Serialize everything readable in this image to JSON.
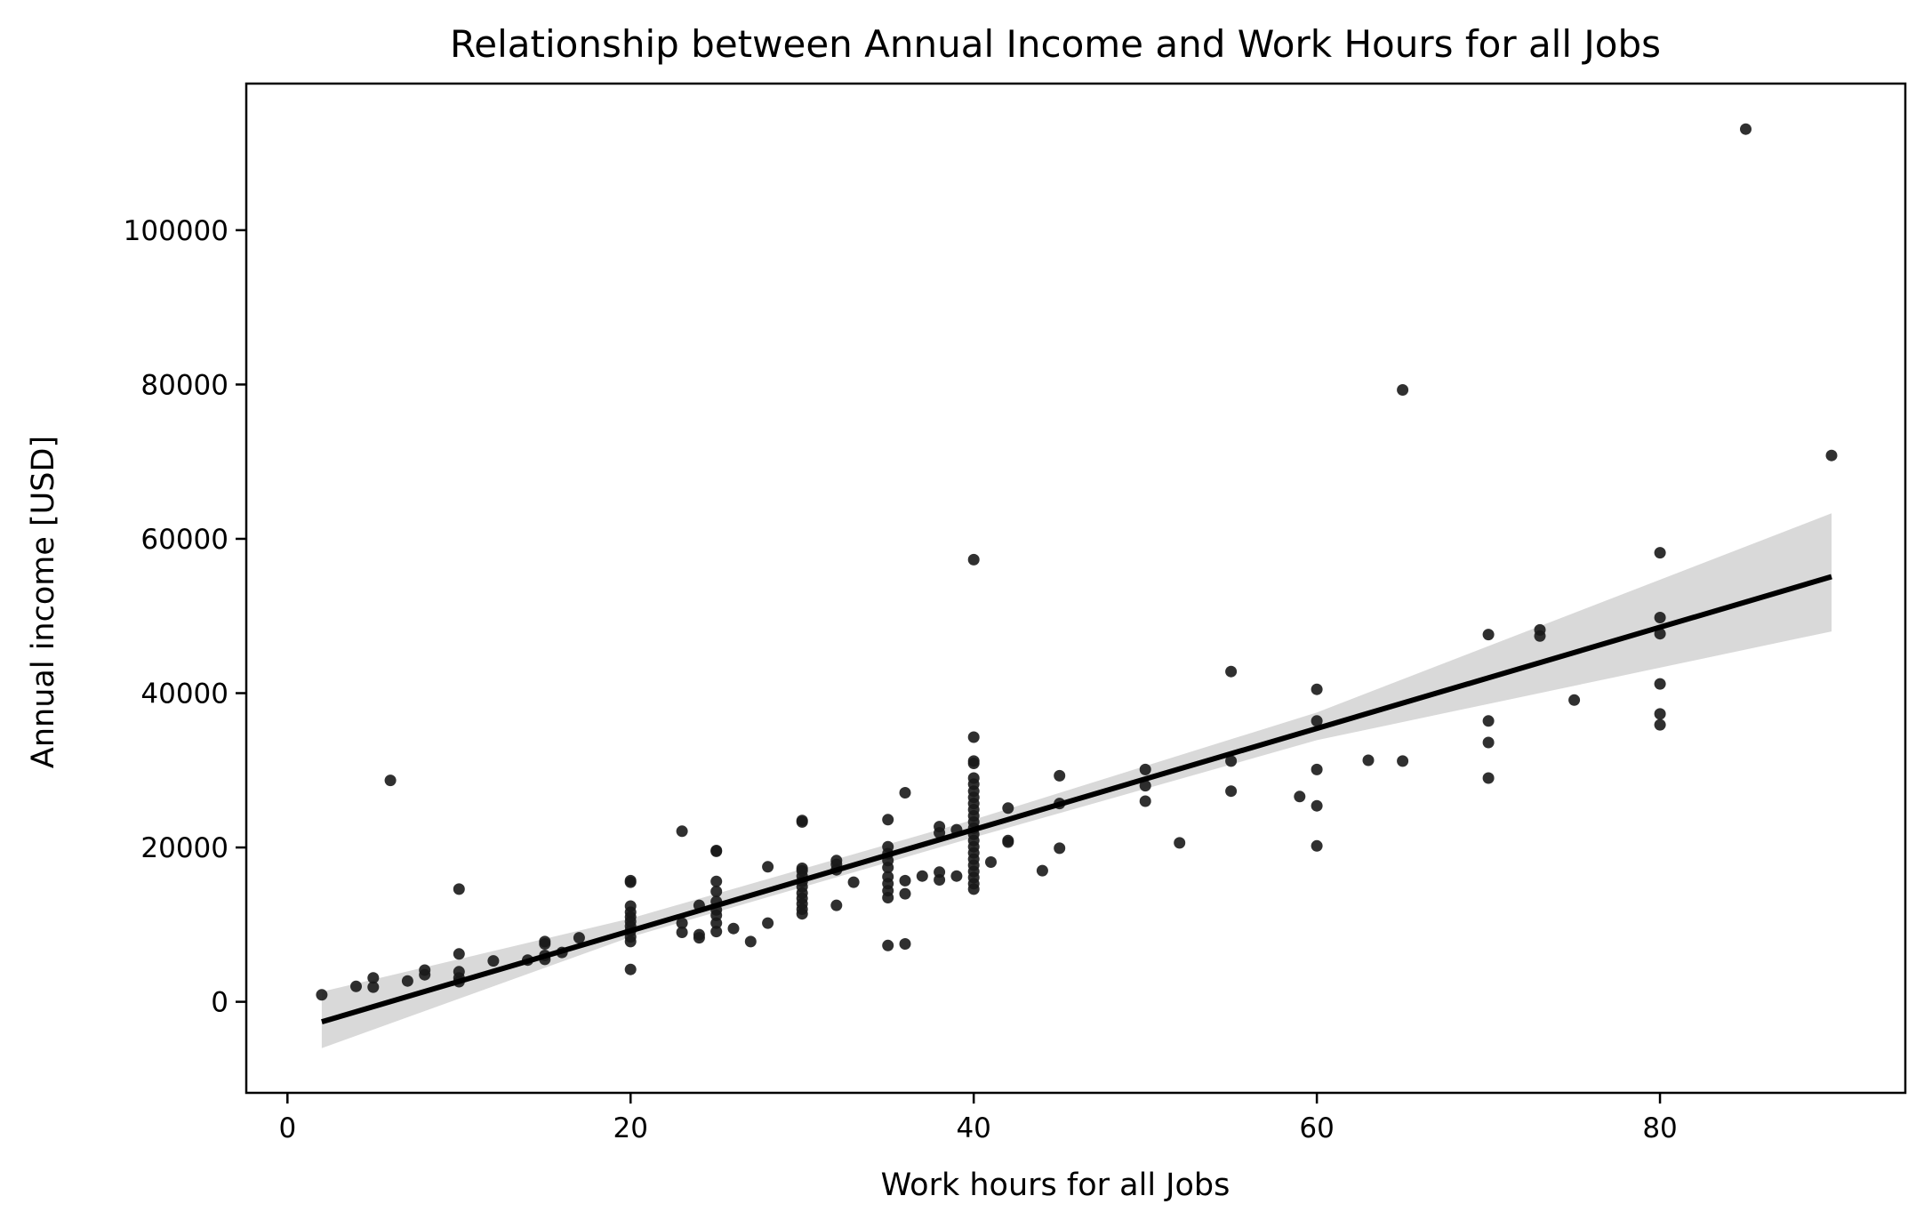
{
  "chart_data": {
    "type": "scatter",
    "title": "Relationship between Annual Income and Work Hours for all Jobs",
    "xlabel": "Work hours for all Jobs",
    "ylabel": "Annual income [USD]",
    "xlim": [
      -2.4,
      94.3
    ],
    "ylim": [
      -11800,
      119000
    ],
    "xticks": [
      0,
      20,
      40,
      60,
      80
    ],
    "yticks": [
      0,
      20000,
      40000,
      60000,
      80000,
      100000
    ],
    "grid": false,
    "legend": "none",
    "points": [
      [
        2,
        900
      ],
      [
        4,
        2000
      ],
      [
        5,
        1900
      ],
      [
        5,
        3100
      ],
      [
        6,
        28700
      ],
      [
        7,
        2700
      ],
      [
        8,
        3500
      ],
      [
        8,
        4100
      ],
      [
        10,
        2600
      ],
      [
        10,
        3100
      ],
      [
        10,
        3900
      ],
      [
        10,
        6200
      ],
      [
        10,
        14600
      ],
      [
        12,
        5300
      ],
      [
        14,
        5400
      ],
      [
        15,
        5500
      ],
      [
        15,
        6000
      ],
      [
        15,
        7500
      ],
      [
        15,
        7800
      ],
      [
        16,
        6400
      ],
      [
        17,
        8300
      ],
      [
        20,
        4200
      ],
      [
        20,
        7800
      ],
      [
        20,
        8400
      ],
      [
        20,
        9200
      ],
      [
        20,
        9800
      ],
      [
        20,
        10400
      ],
      [
        20,
        11000
      ],
      [
        20,
        11600
      ],
      [
        20,
        12400
      ],
      [
        20,
        15500
      ],
      [
        20,
        15700
      ],
      [
        23,
        9000
      ],
      [
        23,
        10200
      ],
      [
        23,
        22100
      ],
      [
        24,
        8300
      ],
      [
        24,
        8700
      ],
      [
        24,
        12500
      ],
      [
        25,
        9100
      ],
      [
        25,
        10200
      ],
      [
        25,
        11200
      ],
      [
        25,
        11900
      ],
      [
        25,
        13000
      ],
      [
        25,
        14300
      ],
      [
        25,
        15600
      ],
      [
        25,
        19500
      ],
      [
        25,
        19600
      ],
      [
        26,
        9500
      ],
      [
        27,
        7800
      ],
      [
        28,
        10200
      ],
      [
        28,
        17500
      ],
      [
        30,
        11400
      ],
      [
        30,
        12000
      ],
      [
        30,
        12700
      ],
      [
        30,
        13400
      ],
      [
        30,
        14100
      ],
      [
        30,
        14900
      ],
      [
        30,
        15600
      ],
      [
        30,
        16300
      ],
      [
        30,
        17000
      ],
      [
        30,
        17300
      ],
      [
        30,
        23300
      ],
      [
        30,
        23500
      ],
      [
        32,
        12500
      ],
      [
        32,
        17100
      ],
      [
        32,
        17800
      ],
      [
        32,
        18300
      ],
      [
        33,
        15500
      ],
      [
        35,
        7300
      ],
      [
        35,
        13500
      ],
      [
        35,
        14400
      ],
      [
        35,
        15300
      ],
      [
        35,
        16200
      ],
      [
        35,
        17400
      ],
      [
        35,
        18300
      ],
      [
        35,
        19200
      ],
      [
        35,
        20100
      ],
      [
        35,
        23600
      ],
      [
        36,
        7500
      ],
      [
        36,
        14000
      ],
      [
        36,
        15700
      ],
      [
        36,
        27100
      ],
      [
        37,
        16300
      ],
      [
        38,
        15800
      ],
      [
        38,
        16800
      ],
      [
        38,
        21900
      ],
      [
        38,
        22700
      ],
      [
        39,
        16300
      ],
      [
        39,
        22300
      ],
      [
        40,
        14600
      ],
      [
        40,
        15300
      ],
      [
        40,
        16100
      ],
      [
        40,
        16900
      ],
      [
        40,
        17700
      ],
      [
        40,
        18500
      ],
      [
        40,
        19300
      ],
      [
        40,
        20100
      ],
      [
        40,
        20900
      ],
      [
        40,
        21700
      ],
      [
        40,
        22500
      ],
      [
        40,
        23300
      ],
      [
        40,
        24100
      ],
      [
        40,
        24900
      ],
      [
        40,
        25700
      ],
      [
        40,
        26500
      ],
      [
        40,
        27300
      ],
      [
        40,
        28200
      ],
      [
        40,
        29000
      ],
      [
        40,
        30900
      ],
      [
        40,
        31200
      ],
      [
        40,
        34300
      ],
      [
        40,
        57300
      ],
      [
        41,
        18100
      ],
      [
        42,
        20700
      ],
      [
        42,
        20900
      ],
      [
        42,
        25100
      ],
      [
        44,
        17000
      ],
      [
        45,
        19900
      ],
      [
        45,
        25700
      ],
      [
        45,
        29300
      ],
      [
        50,
        26000
      ],
      [
        50,
        28000
      ],
      [
        50,
        30100
      ],
      [
        52,
        20600
      ],
      [
        55,
        27300
      ],
      [
        55,
        31200
      ],
      [
        55,
        42800
      ],
      [
        59,
        26600
      ],
      [
        60,
        20200
      ],
      [
        60,
        25400
      ],
      [
        60,
        30100
      ],
      [
        60,
        36400
      ],
      [
        60,
        40500
      ],
      [
        63,
        31300
      ],
      [
        65,
        31200
      ],
      [
        65,
        79300
      ],
      [
        70,
        29000
      ],
      [
        70,
        33600
      ],
      [
        70,
        36400
      ],
      [
        70,
        47600
      ],
      [
        73,
        47400
      ],
      [
        73,
        48200
      ],
      [
        75,
        39100
      ],
      [
        80,
        35900
      ],
      [
        80,
        37300
      ],
      [
        80,
        41200
      ],
      [
        80,
        47700
      ],
      [
        80,
        49800
      ],
      [
        80,
        58200
      ],
      [
        85,
        113100
      ],
      [
        90,
        70800
      ]
    ],
    "regression": {
      "line": [
        [
          2,
          -2600
        ],
        [
          90,
          55100
        ]
      ],
      "ci_upper": [
        [
          2,
          1300
        ],
        [
          20,
          10800
        ],
        [
          40,
          23600
        ],
        [
          60,
          37500
        ],
        [
          90,
          63300
        ]
      ],
      "ci_lower": [
        [
          2,
          -6000
        ],
        [
          20,
          8400
        ],
        [
          40,
          21300
        ],
        [
          60,
          33900
        ],
        [
          90,
          48000
        ]
      ]
    },
    "colors": {
      "points": "#1a1a1a",
      "line": "#000000",
      "ci_band": "#d9d9d9",
      "axes": "#000000"
    }
  }
}
